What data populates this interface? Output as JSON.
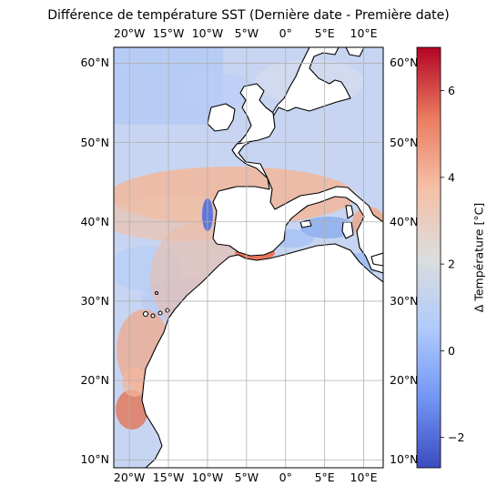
{
  "title": "Différence de température SST (Dernière date - Première date)",
  "map": {
    "projection": "PlateCarree",
    "lon_range": [
      -22,
      12.5
    ],
    "lat_range": [
      9,
      62
    ],
    "lon_ticks": [
      {
        "value": -20,
        "label": "20°W"
      },
      {
        "value": -15,
        "label": "15°W"
      },
      {
        "value": -10,
        "label": "10°W"
      },
      {
        "value": -5,
        "label": "5°W"
      },
      {
        "value": 0,
        "label": "0°"
      },
      {
        "value": 5,
        "label": "5°E"
      },
      {
        "value": 10,
        "label": "10°E"
      }
    ],
    "lat_ticks": [
      {
        "value": 60,
        "label": "60°N"
      },
      {
        "value": 50,
        "label": "50°N"
      },
      {
        "value": 40,
        "label": "40°N"
      },
      {
        "value": 30,
        "label": "30°N"
      },
      {
        "value": 20,
        "label": "20°N"
      },
      {
        "value": 10,
        "label": "10°N"
      }
    ],
    "gridlines": true,
    "colormap": "coolwarm"
  },
  "colorbar": {
    "label": "Δ Température [°C]",
    "range": [
      -2.7,
      7.0
    ],
    "ticks": [
      {
        "value": -2,
        "label": "−2"
      },
      {
        "value": 0,
        "label": "0"
      },
      {
        "value": 2,
        "label": "2"
      },
      {
        "value": 4,
        "label": "4"
      },
      {
        "value": 6,
        "label": "6"
      }
    ],
    "colors": [
      "#3b4cc0",
      "#7396f5",
      "#b0cbfc",
      "#dcdddd",
      "#f6bfa6",
      "#ea7b60",
      "#b40426"
    ]
  }
}
